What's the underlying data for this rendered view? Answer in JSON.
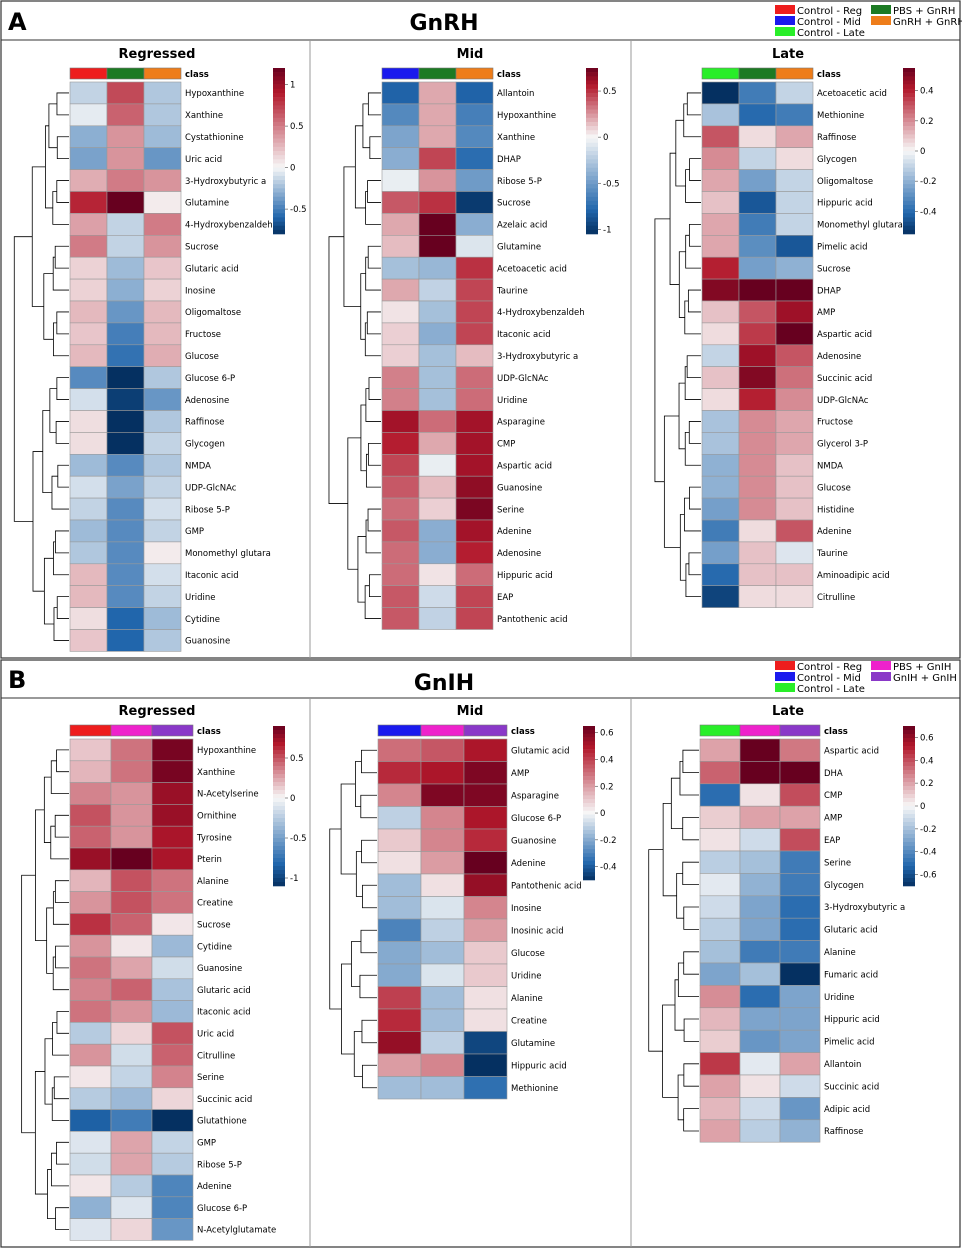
{
  "panels": [
    {
      "letter": "A",
      "title": "GnRH",
      "legend": [
        {
          "label": "Control - Reg",
          "color": "#ee1d1d"
        },
        {
          "label": "PBS + GnRH",
          "color": "#1c7a23"
        },
        {
          "label": "Control - Mid",
          "color": "#1a1aee"
        },
        {
          "label": "GnRH + GnRH",
          "color": "#ee7d1a"
        },
        {
          "label": "Control - Late",
          "color": "#29ee29"
        }
      ]
    },
    {
      "letter": "B",
      "title": "GnIH",
      "legend": [
        {
          "label": "Control - Reg",
          "color": "#ee1d1d"
        },
        {
          "label": "PBS + GnIH",
          "color": "#ee22cc"
        },
        {
          "label": "Control - Mid",
          "color": "#1a1aee"
        },
        {
          "label": "GnIH + GnIH",
          "color": "#8a38c8"
        },
        {
          "label": "Control - Late",
          "color": "#29ee29"
        }
      ]
    }
  ],
  "chart_data": [
    {
      "type": "heatmap",
      "panel": "A",
      "title": "Regressed",
      "class_label": "class",
      "class_colors": [
        "#ee1d1d",
        "#1c7a23",
        "#ee7d1a"
      ],
      "colorbar": {
        "ticks": [
          1,
          0.5,
          0,
          -0.5
        ],
        "range": [
          -0.8,
          1.2
        ]
      },
      "rows": [
        "Hypoxanthine",
        "Xanthine",
        "Cystathionine",
        "Uric acid",
        "3-Hydroxybutyric a",
        "Glutamine",
        "4-Hydroxybenzaldeh",
        "Sucrose",
        "Glutaric acid",
        "Inosine",
        "Oligomaltose",
        "Fructose",
        "Glucose",
        "Glucose 6-P",
        "Adenosine",
        "Raffinose",
        "Glycogen",
        "NMDA",
        "UDP-GlcNAc",
        "Ribose 5-P",
        "GMP",
        "Monomethyl glutara",
        "Itaconic acid",
        "Uridine",
        "Cytidine",
        "Guanosine"
      ],
      "values": [
        [
          -0.15,
          0.7,
          -0.2
        ],
        [
          -0.05,
          0.6,
          -0.2
        ],
        [
          -0.3,
          0.4,
          -0.25
        ],
        [
          -0.35,
          0.4,
          -0.4
        ],
        [
          0.3,
          0.5,
          0.4
        ],
        [
          0.85,
          1.2,
          0.05
        ],
        [
          0.35,
          -0.15,
          0.5
        ],
        [
          0.5,
          -0.15,
          0.4
        ],
        [
          0.15,
          -0.25,
          0.2
        ],
        [
          0.15,
          -0.3,
          0.15
        ],
        [
          0.25,
          -0.4,
          0.25
        ],
        [
          0.2,
          -0.5,
          0.25
        ],
        [
          0.25,
          -0.55,
          0.3
        ],
        [
          -0.45,
          -0.8,
          -0.2
        ],
        [
          -0.1,
          -0.75,
          -0.4
        ],
        [
          0.1,
          -0.8,
          -0.2
        ],
        [
          0.1,
          -0.8,
          -0.15
        ],
        [
          -0.25,
          -0.45,
          -0.2
        ],
        [
          -0.1,
          -0.35,
          -0.15
        ],
        [
          -0.15,
          -0.45,
          -0.1
        ],
        [
          -0.25,
          -0.45,
          -0.15
        ],
        [
          -0.2,
          -0.45,
          0.05
        ],
        [
          0.25,
          -0.45,
          -0.1
        ],
        [
          0.25,
          -0.45,
          -0.15
        ],
        [
          0.1,
          -0.6,
          -0.25
        ],
        [
          0.2,
          -0.6,
          -0.2
        ]
      ]
    },
    {
      "type": "heatmap",
      "panel": "A",
      "title": "Mid",
      "class_label": "class",
      "class_colors": [
        "#1a1aee",
        "#1c7a23",
        "#ee7d1a"
      ],
      "colorbar": {
        "ticks": [
          0.5,
          0,
          -0.5,
          -1
        ],
        "range": [
          -1.05,
          0.75
        ]
      },
      "rows": [
        "Allantoin",
        "Hypoxanthine",
        "Xanthine",
        "DHAP",
        "Ribose 5-P",
        "Sucrose",
        "Azelaic acid",
        "Glutamine",
        "Acetoacetic acid",
        "Taurine",
        "4-Hydroxybenzaldeh",
        "Itaconic acid",
        "3-Hydroxybutyric a",
        "UDP-GlcNAc",
        "Uridine",
        "Asparagine",
        "CMP",
        "Aspartic acid",
        "Guanosine",
        "Serine",
        "Adenine",
        "Adenosine",
        "Hippuric acid",
        "EAP",
        "Pantothenic acid"
      ],
      "values": [
        [
          -0.8,
          0.2,
          -0.8
        ],
        [
          -0.6,
          0.2,
          -0.65
        ],
        [
          -0.45,
          0.2,
          -0.6
        ],
        [
          -0.4,
          0.45,
          -0.75
        ],
        [
          -0.05,
          0.25,
          -0.5
        ],
        [
          0.4,
          0.5,
          -1.0
        ],
        [
          0.2,
          0.75,
          -0.4
        ],
        [
          0.15,
          0.75,
          -0.1
        ],
        [
          -0.3,
          -0.35,
          0.5
        ],
        [
          0.2,
          -0.2,
          0.45
        ],
        [
          0.05,
          -0.3,
          0.45
        ],
        [
          0.1,
          -0.4,
          0.45
        ],
        [
          0.1,
          -0.3,
          0.15
        ],
        [
          0.3,
          -0.3,
          0.35
        ],
        [
          0.3,
          -0.3,
          0.35
        ],
        [
          0.6,
          0.35,
          0.6
        ],
        [
          0.55,
          0.2,
          0.6
        ],
        [
          0.45,
          -0.05,
          0.6
        ],
        [
          0.4,
          0.15,
          0.65
        ],
        [
          0.35,
          0.1,
          0.7
        ],
        [
          0.4,
          -0.4,
          0.6
        ],
        [
          0.35,
          -0.4,
          0.55
        ],
        [
          0.35,
          0.05,
          0.35
        ],
        [
          0.4,
          -0.15,
          0.45
        ],
        [
          0.4,
          -0.2,
          0.45
        ]
      ]
    },
    {
      "type": "heatmap",
      "panel": "A",
      "title": "Late",
      "class_label": "class",
      "class_colors": [
        "#29ee29",
        "#1c7a23",
        "#ee7d1a"
      ],
      "colorbar": {
        "ticks": [
          0.4,
          0.2,
          0,
          -0.2,
          -0.4
        ],
        "range": [
          -0.55,
          0.55
        ]
      },
      "rows": [
        "Acetoacetic acid",
        "Methionine",
        "Raffinose",
        "Glycogen",
        "Oligomaltose",
        "Hippuric acid",
        "Monomethyl glutara",
        "Pimelic acid",
        "Sucrose",
        "DHAP",
        "AMP",
        "Aspartic acid",
        "Adenosine",
        "Succinic acid",
        "UDP-GlcNAc",
        "Fructose",
        "Glycerol 3-P",
        "NMDA",
        "Glucose",
        "Histidine",
        "Adenine",
        "Taurine",
        "Aminoadipic acid",
        "Citrulline"
      ],
      "values": [
        [
          -0.55,
          -0.35,
          -0.1
        ],
        [
          -0.15,
          -0.4,
          -0.35
        ],
        [
          0.3,
          0.05,
          0.15
        ],
        [
          0.2,
          -0.1,
          0.05
        ],
        [
          0.15,
          -0.25,
          -0.1
        ],
        [
          0.1,
          -0.45,
          -0.1
        ],
        [
          0.15,
          -0.35,
          -0.1
        ],
        [
          0.15,
          -0.3,
          -0.45
        ],
        [
          0.4,
          -0.25,
          -0.2
        ],
        [
          0.5,
          0.55,
          0.55
        ],
        [
          0.1,
          0.3,
          0.45
        ],
        [
          0.05,
          0.35,
          0.55
        ],
        [
          -0.1,
          0.45,
          0.3
        ],
        [
          0.1,
          0.5,
          0.25
        ],
        [
          0.05,
          0.4,
          0.2
        ],
        [
          -0.15,
          0.2,
          0.15
        ],
        [
          -0.15,
          0.2,
          0.15
        ],
        [
          -0.2,
          0.2,
          0.1
        ],
        [
          -0.2,
          0.2,
          0.1
        ],
        [
          -0.25,
          0.2,
          0.1
        ],
        [
          -0.35,
          0.05,
          0.3
        ],
        [
          -0.25,
          0.1,
          -0.05
        ],
        [
          -0.4,
          0.1,
          0.1
        ],
        [
          -0.5,
          0.05,
          0.05
        ]
      ]
    },
    {
      "type": "heatmap",
      "panel": "B",
      "title": "Regressed",
      "class_label": "class",
      "class_colors": [
        "#ee1d1d",
        "#ee22cc",
        "#8a38c8"
      ],
      "colorbar": {
        "ticks": [
          0.5,
          0,
          -0.5,
          -1
        ],
        "range": [
          -1.1,
          0.9
        ]
      },
      "rows": [
        "Hypoxanthine",
        "Xanthine",
        "N-Acetylserine",
        "Ornithine",
        "Tyrosine",
        "Pterin",
        "Alanine",
        "Creatine",
        "Sucrose",
        "Cytidine",
        "Guanosine",
        "Glutaric acid",
        "Itaconic acid",
        "Uric acid",
        "Citrulline",
        "Serine",
        "Succinic acid",
        "Glutathione",
        "GMP",
        "Ribose 5-P",
        "Adenine",
        "Glucose 6-P",
        "N-Acetylglutamate"
      ],
      "values": [
        [
          0.15,
          0.4,
          0.85
        ],
        [
          0.2,
          0.4,
          0.85
        ],
        [
          0.35,
          0.3,
          0.75
        ],
        [
          0.5,
          0.3,
          0.75
        ],
        [
          0.45,
          0.3,
          0.7
        ],
        [
          0.75,
          0.9,
          0.7
        ],
        [
          0.2,
          0.5,
          0.4
        ],
        [
          0.3,
          0.5,
          0.4
        ],
        [
          0.6,
          0.45,
          0.05
        ],
        [
          0.3,
          0.05,
          -0.35
        ],
        [
          0.4,
          0.25,
          -0.15
        ],
        [
          0.35,
          0.45,
          -0.3
        ],
        [
          0.4,
          0.3,
          -0.35
        ],
        [
          -0.25,
          0.1,
          0.5
        ],
        [
          0.3,
          -0.15,
          0.45
        ],
        [
          0.05,
          -0.2,
          0.35
        ],
        [
          -0.25,
          -0.35,
          0.1
        ],
        [
          -0.85,
          -0.7,
          -1.1
        ],
        [
          -0.1,
          0.25,
          -0.2
        ],
        [
          -0.15,
          0.25,
          -0.25
        ],
        [
          0.05,
          -0.25,
          -0.65
        ],
        [
          -0.4,
          -0.1,
          -0.65
        ],
        [
          -0.1,
          0.1,
          -0.55
        ]
      ]
    },
    {
      "type": "heatmap",
      "panel": "B",
      "title": "Mid",
      "class_label": "class",
      "class_colors": [
        "#1a1aee",
        "#ee22cc",
        "#8a38c8"
      ],
      "colorbar": {
        "ticks": [
          0.6,
          0.4,
          0.2,
          0,
          -0.2,
          -0.4
        ],
        "range": [
          -0.5,
          0.65
        ]
      },
      "rows": [
        "Glutamic acid",
        "AMP",
        "Asparagine",
        "Glucose 6-P",
        "Guanosine",
        "Adenine",
        "Pantothenic acid",
        "Inosine",
        "Inosinic acid",
        "Glucose",
        "Uridine",
        "Alanine",
        "Creatine",
        "Glutamine",
        "Hippuric acid",
        "Methionine"
      ],
      "values": [
        [
          0.3,
          0.35,
          0.5
        ],
        [
          0.45,
          0.5,
          0.6
        ],
        [
          0.25,
          0.6,
          0.6
        ],
        [
          -0.1,
          0.25,
          0.5
        ],
        [
          0.1,
          0.25,
          0.45
        ],
        [
          0.05,
          0.2,
          0.65
        ],
        [
          -0.15,
          0.05,
          0.55
        ],
        [
          -0.15,
          -0.05,
          0.25
        ],
        [
          -0.3,
          -0.1,
          0.2
        ],
        [
          -0.2,
          -0.15,
          0.1
        ],
        [
          -0.2,
          -0.05,
          0.1
        ],
        [
          0.4,
          -0.15,
          0.05
        ],
        [
          0.45,
          -0.15,
          0.05
        ],
        [
          0.55,
          -0.1,
          -0.45
        ],
        [
          0.2,
          0.25,
          -0.5
        ],
        [
          -0.15,
          -0.15,
          -0.35
        ]
      ]
    },
    {
      "type": "heatmap",
      "panel": "B",
      "title": "Late",
      "class_label": "class",
      "class_colors": [
        "#29ee29",
        "#ee22cc",
        "#8a38c8"
      ],
      "colorbar": {
        "ticks": [
          0.6,
          0.4,
          0.2,
          0,
          -0.2,
          -0.4,
          -0.6
        ],
        "range": [
          -0.7,
          0.7
        ]
      },
      "rows": [
        "Aspartic acid",
        "DHA",
        "CMP",
        "AMP",
        "EAP",
        "Serine",
        "Glycogen",
        "3-Hydroxybutyric a",
        "Glutaric acid",
        "Alanine",
        "Fumaric acid",
        "Uridine",
        "Hippuric acid",
        "Pimelic acid",
        "Allantoin",
        "Succinic acid",
        "Adipic acid",
        "Raffinose"
      ],
      "values": [
        [
          0.2,
          0.7,
          0.3
        ],
        [
          0.35,
          0.7,
          0.7
        ],
        [
          -0.5,
          0.05,
          0.4
        ],
        [
          0.1,
          0.2,
          0.2
        ],
        [
          0.05,
          -0.1,
          0.4
        ],
        [
          -0.15,
          -0.2,
          -0.45
        ],
        [
          -0.05,
          -0.25,
          -0.45
        ],
        [
          -0.1,
          -0.3,
          -0.5
        ],
        [
          -0.15,
          -0.3,
          -0.5
        ],
        [
          -0.2,
          -0.45,
          -0.45
        ],
        [
          -0.3,
          -0.2,
          -0.7
        ],
        [
          0.25,
          -0.5,
          -0.3
        ],
        [
          0.15,
          -0.3,
          -0.3
        ],
        [
          0.1,
          -0.35,
          -0.3
        ],
        [
          0.45,
          -0.05,
          0.2
        ],
        [
          0.2,
          0.05,
          -0.1
        ],
        [
          0.15,
          -0.1,
          -0.35
        ],
        [
          0.2,
          -0.15,
          -0.25
        ]
      ]
    }
  ]
}
